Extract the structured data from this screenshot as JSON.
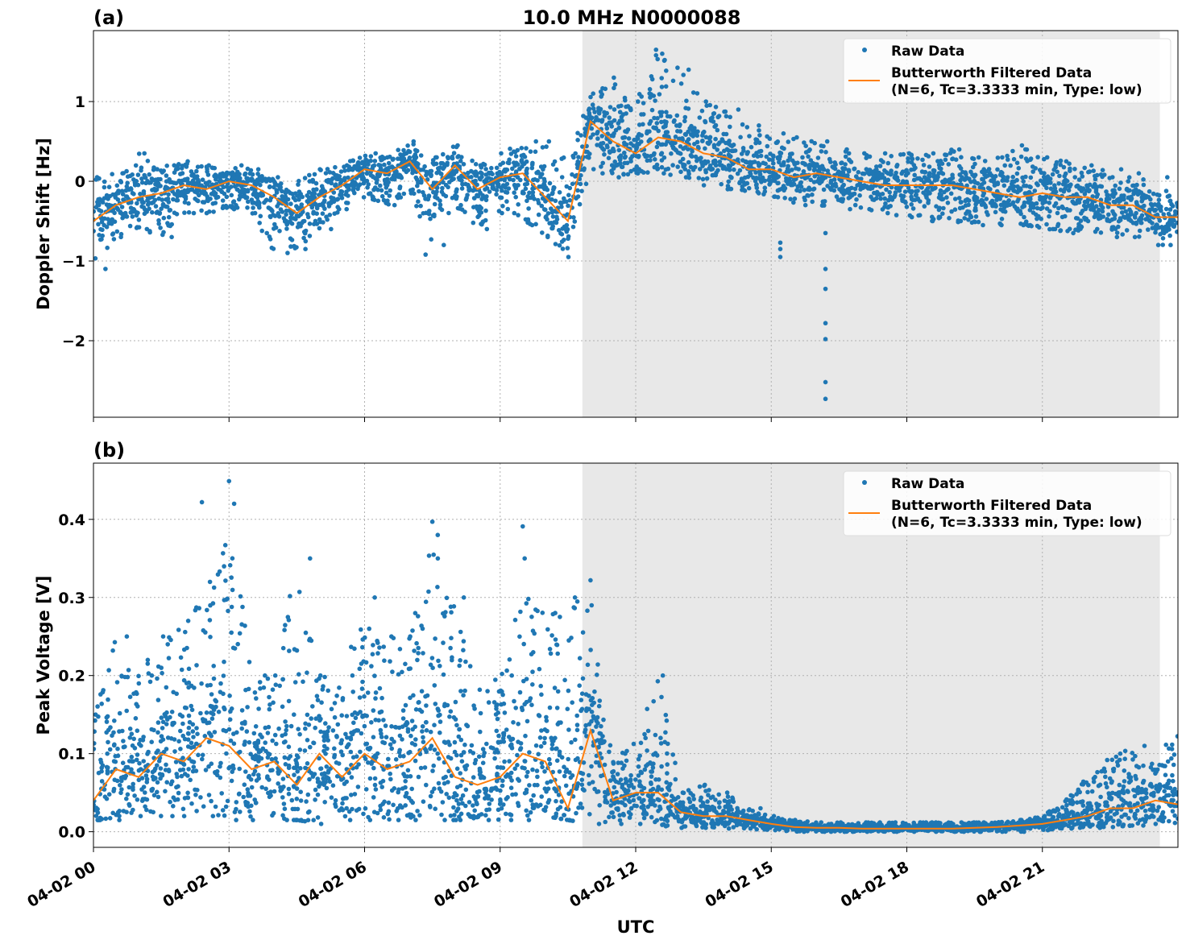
{
  "title": "10.0 MHz N0000088",
  "chart_data": [
    {
      "type": "scatter",
      "panel_label": "(a)",
      "ylabel": "Doppler Shift [Hz]",
      "xlabel": "",
      "xlim_hours": [
        0,
        24
      ],
      "ylim": [
        -2.96,
        1.89
      ],
      "yticks": [
        1,
        0,
        -1,
        -2
      ],
      "ytick_labels": [
        "1",
        "0",
        "−1",
        "−2"
      ],
      "grid": true,
      "legend": {
        "placement": "top-right",
        "raw": "Raw Data",
        "filtered_line1": "Butterworth Filtered Data",
        "filtered_line2": "(N=6, Tc=3.3333 min, Type: low)"
      },
      "shaded_hours": [
        10.82,
        23.6
      ],
      "x_hours": [
        0,
        0.5,
        1,
        1.5,
        2,
        2.5,
        3,
        3.5,
        4,
        4.5,
        5,
        5.5,
        6,
        6.5,
        7,
        7.5,
        8,
        8.5,
        9,
        9.5,
        10,
        10.5,
        11,
        11.5,
        12,
        12.5,
        13,
        13.5,
        14,
        14.5,
        15,
        15.5,
        16,
        16.5,
        17,
        17.5,
        18,
        18.5,
        19,
        19.5,
        20,
        20.5,
        21,
        21.5,
        22,
        22.5,
        23,
        23.5,
        24
      ],
      "filtered": [
        -0.5,
        -0.3,
        -0.2,
        -0.15,
        -0.05,
        -0.1,
        0.0,
        -0.05,
        -0.2,
        -0.4,
        -0.2,
        -0.05,
        0.15,
        0.1,
        0.25,
        -0.1,
        0.2,
        -0.1,
        0.05,
        0.1,
        -0.2,
        -0.5,
        0.75,
        0.5,
        0.35,
        0.55,
        0.5,
        0.35,
        0.3,
        0.15,
        0.15,
        0.05,
        0.1,
        0.05,
        0.0,
        -0.05,
        -0.05,
        -0.05,
        -0.05,
        -0.1,
        -0.15,
        -0.2,
        -0.15,
        -0.2,
        -0.2,
        -0.3,
        -0.3,
        -0.45,
        -0.45
      ],
      "raw_min": [
        -1.1,
        -0.7,
        -0.6,
        -0.7,
        -0.4,
        -0.4,
        -0.35,
        -0.4,
        -0.9,
        -0.85,
        -0.6,
        -0.35,
        -0.2,
        -0.3,
        -0.15,
        -0.8,
        -0.3,
        -0.6,
        -0.4,
        -0.5,
        -0.7,
        -0.95,
        0.1,
        0.05,
        0.1,
        0.1,
        0.05,
        -0.05,
        -0.1,
        -0.15,
        -0.2,
        -0.3,
        -0.3,
        -0.35,
        -0.35,
        -0.4,
        -0.45,
        -0.5,
        -0.5,
        -0.55,
        -0.55,
        -0.55,
        -0.6,
        -0.65,
        -0.6,
        -0.7,
        -0.7,
        -0.8,
        -0.8
      ],
      "raw_max": [
        0.05,
        0.1,
        0.35,
        0.2,
        0.25,
        0.2,
        0.2,
        0.15,
        0.05,
        0.0,
        0.15,
        0.2,
        0.35,
        0.3,
        0.5,
        0.3,
        0.45,
        0.2,
        0.35,
        0.5,
        0.5,
        0.3,
        1.1,
        1.3,
        1.0,
        1.6,
        1.4,
        1.0,
        0.9,
        0.7,
        0.6,
        0.55,
        0.5,
        0.4,
        0.35,
        0.35,
        0.35,
        0.35,
        0.4,
        0.3,
        0.3,
        0.45,
        0.3,
        0.25,
        0.2,
        0.15,
        0.1,
        0.05,
        0.0
      ],
      "outliers": [
        [
          15.2,
          -0.77
        ],
        [
          15.2,
          -0.85
        ],
        [
          15.2,
          -0.95
        ],
        [
          16.2,
          -0.65
        ],
        [
          16.2,
          -1.1
        ],
        [
          16.2,
          -1.35
        ],
        [
          16.2,
          -1.78
        ],
        [
          16.2,
          -1.98
        ],
        [
          16.2,
          -2.52
        ],
        [
          16.2,
          -2.73
        ],
        [
          12.45,
          1.65
        ],
        [
          12.45,
          1.58
        ],
        [
          7.35,
          -0.92
        ]
      ]
    },
    {
      "type": "scatter",
      "panel_label": "(b)",
      "ylabel": "Peak Voltage [V]",
      "xlabel": "UTC",
      "xlim_hours": [
        0,
        24
      ],
      "ylim": [
        -0.02,
        0.472
      ],
      "yticks": [
        0.4,
        0.3,
        0.2,
        0.1,
        0.0
      ],
      "ytick_labels": [
        "0.4",
        "0.3",
        "0.2",
        "0.1",
        "0.0"
      ],
      "xtick_hours": [
        0,
        3,
        6,
        9,
        12,
        15,
        18,
        21
      ],
      "xtick_labels": [
        "04-02 00",
        "04-02 03",
        "04-02 06",
        "04-02 09",
        "04-02 12",
        "04-02 15",
        "04-02 18",
        "04-02 21"
      ],
      "grid": true,
      "legend": {
        "placement": "top-right",
        "raw": "Raw Data",
        "filtered_line1": "Butterworth Filtered Data",
        "filtered_line2": "(N=6, Tc=3.3333 min, Type: low)"
      },
      "shaded_hours": [
        10.82,
        23.6
      ],
      "x_hours": [
        0,
        0.5,
        1,
        1.5,
        2,
        2.5,
        3,
        3.5,
        4,
        4.5,
        5,
        5.5,
        6,
        6.5,
        7,
        7.5,
        8,
        8.5,
        9,
        9.5,
        10,
        10.5,
        11,
        11.5,
        12,
        12.5,
        13,
        13.5,
        14,
        14.5,
        15,
        15.5,
        16,
        16.5,
        17,
        17.5,
        18,
        18.5,
        19,
        19.5,
        20,
        20.5,
        21,
        21.5,
        22,
        22.5,
        23,
        23.5,
        24
      ],
      "filtered": [
        0.04,
        0.08,
        0.07,
        0.1,
        0.09,
        0.12,
        0.11,
        0.08,
        0.09,
        0.06,
        0.1,
        0.07,
        0.1,
        0.08,
        0.09,
        0.12,
        0.07,
        0.06,
        0.07,
        0.1,
        0.09,
        0.03,
        0.13,
        0.04,
        0.05,
        0.05,
        0.025,
        0.02,
        0.02,
        0.015,
        0.01,
        0.006,
        0.005,
        0.005,
        0.004,
        0.004,
        0.004,
        0.004,
        0.004,
        0.005,
        0.006,
        0.008,
        0.01,
        0.015,
        0.02,
        0.03,
        0.03,
        0.04,
        0.035
      ],
      "raw_min": [
        0.015,
        0.015,
        0.02,
        0.02,
        0.02,
        0.02,
        0.015,
        0.015,
        0.015,
        0.015,
        0.01,
        0.015,
        0.015,
        0.015,
        0.015,
        0.015,
        0.015,
        0.015,
        0.015,
        0.015,
        0.02,
        0.015,
        0.01,
        0.01,
        0.01,
        0.008,
        0.005,
        0.005,
        0.004,
        0.003,
        0.002,
        0.0,
        0.0,
        0.0,
        0.0,
        0.0,
        0.0,
        0.0,
        0.0,
        0.0,
        0.0,
        0.0,
        0.002,
        0.004,
        0.005,
        0.006,
        0.008,
        0.01,
        0.01
      ],
      "raw_max": [
        0.15,
        0.25,
        0.2,
        0.25,
        0.27,
        0.32,
        0.42,
        0.2,
        0.2,
        0.35,
        0.2,
        0.2,
        0.3,
        0.25,
        0.25,
        0.38,
        0.3,
        0.18,
        0.2,
        0.35,
        0.28,
        0.3,
        0.29,
        0.1,
        0.12,
        0.2,
        0.05,
        0.06,
        0.05,
        0.03,
        0.02,
        0.015,
        0.012,
        0.012,
        0.012,
        0.012,
        0.012,
        0.012,
        0.012,
        0.012,
        0.012,
        0.015,
        0.02,
        0.04,
        0.07,
        0.1,
        0.11,
        0.09,
        0.15
      ],
      "outliers": [
        [
          3.0,
          0.449
        ],
        [
          2.4,
          0.422
        ],
        [
          7.5,
          0.397
        ],
        [
          9.5,
          0.391
        ],
        [
          11.0,
          0.322
        ]
      ]
    }
  ],
  "colors": {
    "raw": "#1f77b4",
    "filtered": "#ff7f0e",
    "shade": "#e8e8e8"
  }
}
